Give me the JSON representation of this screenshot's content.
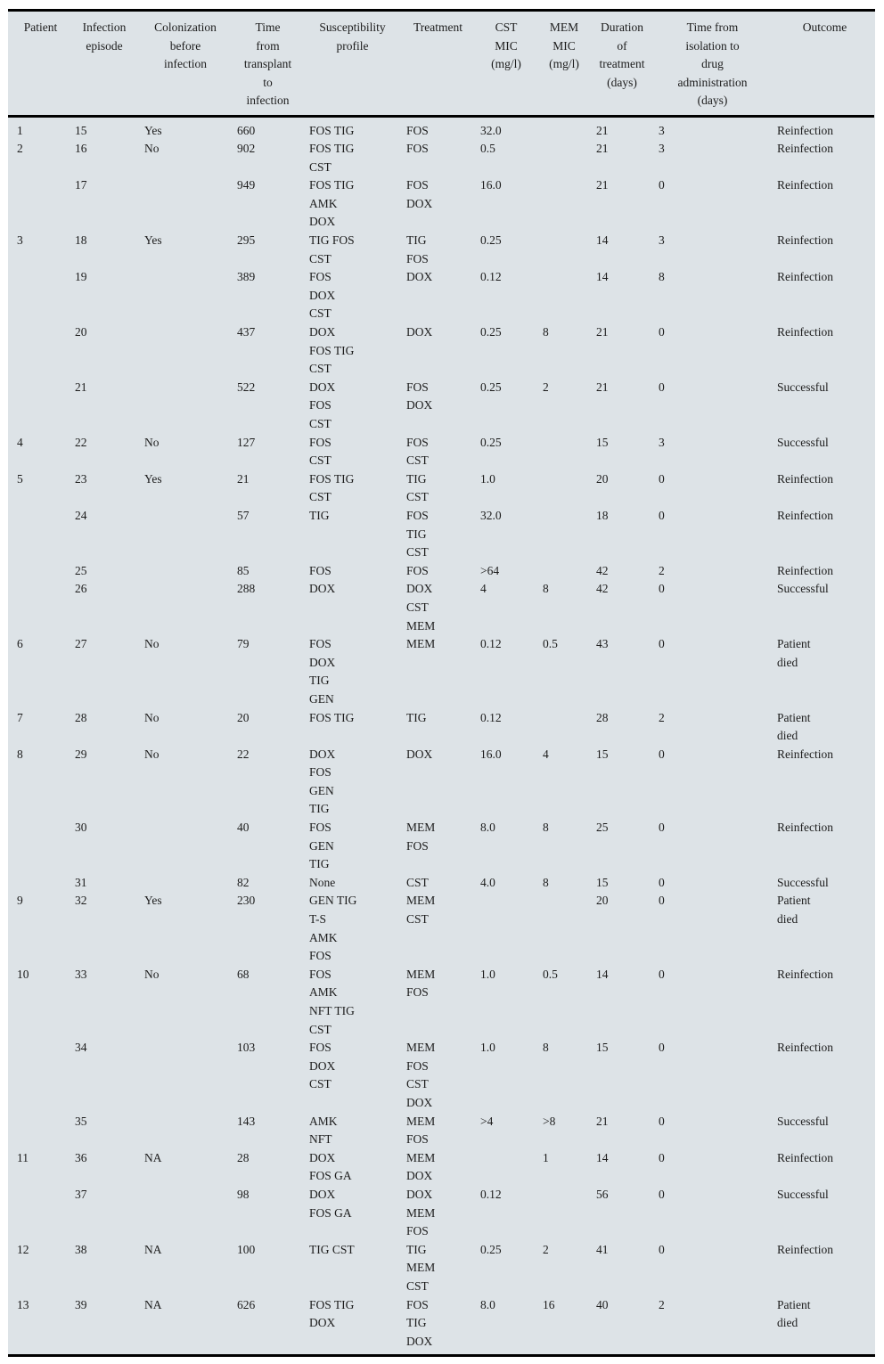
{
  "table": {
    "column_ids": [
      "patient",
      "infection-episode",
      "colonization-before-infection",
      "time-from-transplant-to-infection",
      "susceptibility-profile",
      "treatment",
      "cst-mic",
      "mem-mic",
      "treatment-duration",
      "time-from-isolation-to-drug-administration",
      "outcome"
    ],
    "columns": [
      [
        "Patient"
      ],
      [
        "Infection",
        "episode"
      ],
      [
        "Colonization",
        "before",
        "infection"
      ],
      [
        "Time",
        "from",
        "transplant",
        "to",
        "infection"
      ],
      [
        "Susceptibility",
        "profile"
      ],
      [
        "Treatment"
      ],
      [
        "CST",
        "MIC",
        "(mg/l)"
      ],
      [
        "MEM",
        "MIC",
        "(mg/l)"
      ],
      [
        "Duration",
        "of",
        "treatment",
        "(days)"
      ],
      [
        "Time from",
        "isolation to",
        "drug",
        "administration",
        "(days)"
      ],
      [
        "Outcome"
      ]
    ],
    "rows": [
      [
        "1",
        "15",
        "Yes",
        "660",
        "FOS TIG",
        "FOS",
        "32.0",
        "",
        "21",
        "3",
        "Reinfection"
      ],
      [
        "2",
        "16",
        "No",
        "902",
        [
          "FOS TIG",
          "CST"
        ],
        "FOS",
        "0.5",
        "",
        "21",
        "3",
        "Reinfection"
      ],
      [
        "",
        "17",
        "",
        "949",
        [
          "FOS TIG",
          "AMK",
          "DOX"
        ],
        [
          "FOS",
          "DOX"
        ],
        "16.0",
        "",
        "21",
        "0",
        "Reinfection"
      ],
      [
        "3",
        "18",
        "Yes",
        "295",
        [
          "TIG FOS",
          "CST"
        ],
        [
          "TIG",
          "FOS"
        ],
        "0.25",
        "",
        "14",
        "3",
        "Reinfection"
      ],
      [
        "",
        "19",
        "",
        "389",
        [
          "FOS",
          "DOX",
          "CST"
        ],
        "DOX",
        "0.12",
        "",
        "14",
        "8",
        "Reinfection"
      ],
      [
        "",
        "20",
        "",
        "437",
        [
          "DOX",
          "FOS TIG",
          "CST"
        ],
        "DOX",
        "0.25",
        "8",
        "21",
        "0",
        "Reinfection"
      ],
      [
        "",
        "21",
        "",
        "522",
        [
          "DOX",
          "FOS",
          "CST"
        ],
        [
          "FOS",
          "DOX"
        ],
        "0.25",
        "2",
        "21",
        "0",
        "Successful"
      ],
      [
        "4",
        "22",
        "No",
        "127",
        [
          "FOS",
          "CST"
        ],
        [
          "FOS",
          "CST"
        ],
        "0.25",
        "",
        "15",
        "3",
        "Successful"
      ],
      [
        "5",
        "23",
        "Yes",
        "21",
        [
          "FOS TIG",
          "CST"
        ],
        [
          "TIG",
          "CST"
        ],
        "1.0",
        "",
        "20",
        "0",
        "Reinfection"
      ],
      [
        "",
        "24",
        "",
        "57",
        "TIG",
        [
          "FOS",
          "TIG",
          "CST"
        ],
        "32.0",
        "",
        "18",
        "0",
        "Reinfection"
      ],
      [
        "",
        "25",
        "",
        "85",
        "FOS",
        "FOS",
        ">64",
        "",
        "42",
        "2",
        "Reinfection"
      ],
      [
        "",
        "26",
        "",
        "288",
        "DOX",
        [
          "DOX",
          "CST",
          "MEM"
        ],
        "4",
        "8",
        "42",
        "0",
        "Successful"
      ],
      [
        "6",
        "27",
        "No",
        "79",
        [
          "FOS",
          "DOX",
          "TIG",
          "GEN"
        ],
        "MEM",
        "0.12",
        "0.5",
        "43",
        "0",
        [
          "Patient",
          "died"
        ]
      ],
      [
        "7",
        "28",
        "No",
        "20",
        "FOS TIG",
        "TIG",
        "0.12",
        "",
        "28",
        "2",
        [
          "Patient",
          "died"
        ]
      ],
      [
        "8",
        "29",
        "No",
        "22",
        [
          "DOX",
          "FOS",
          "GEN",
          "TIG"
        ],
        "DOX",
        "16.0",
        "4",
        "15",
        "0",
        "Reinfection"
      ],
      [
        "",
        "30",
        "",
        "40",
        [
          "FOS",
          "GEN",
          "TIG"
        ],
        [
          "MEM",
          "FOS"
        ],
        "8.0",
        "8",
        "25",
        "0",
        "Reinfection"
      ],
      [
        "",
        "31",
        "",
        "82",
        "None",
        "CST",
        "4.0",
        "8",
        "15",
        "0",
        "Successful"
      ],
      [
        "9",
        "32",
        "Yes",
        "230",
        [
          "GEN TIG",
          "T-S",
          "AMK",
          "FOS"
        ],
        [
          "MEM",
          "CST"
        ],
        "",
        "",
        "20",
        "0",
        [
          "Patient",
          "died"
        ]
      ],
      [
        "10",
        "33",
        "No",
        "68",
        [
          "FOS",
          "AMK",
          "NFT TIG",
          "CST"
        ],
        [
          "MEM",
          "FOS"
        ],
        "1.0",
        "0.5",
        "14",
        "0",
        "Reinfection"
      ],
      [
        "",
        "34",
        "",
        "103",
        [
          "FOS",
          "DOX",
          "CST"
        ],
        [
          "MEM",
          "FOS",
          "CST",
          "DOX"
        ],
        "1.0",
        "8",
        "15",
        "0",
        "Reinfection"
      ],
      [
        "",
        "35",
        "",
        "143",
        [
          "AMK",
          "NFT"
        ],
        [
          "MEM",
          "FOS"
        ],
        ">4",
        ">8",
        "21",
        "0",
        "Successful"
      ],
      [
        "11",
        "36",
        "NA",
        "28",
        [
          "DOX",
          "FOS GA"
        ],
        [
          "MEM",
          "DOX"
        ],
        "",
        "1",
        "14",
        "0",
        "Reinfection"
      ],
      [
        "",
        "37",
        "",
        "98",
        [
          "DOX",
          "FOS GA"
        ],
        [
          "DOX",
          "MEM",
          "FOS"
        ],
        "0.12",
        "",
        "56",
        "0",
        "Successful"
      ],
      [
        "12",
        "38",
        "NA",
        "100",
        "TIG CST",
        [
          "TIG",
          "MEM",
          "CST"
        ],
        "0.25",
        "2",
        "41",
        "0",
        "Reinfection"
      ],
      [
        "13",
        "39",
        "NA",
        "626",
        [
          "FOS TIG",
          "DOX"
        ],
        [
          "FOS",
          "TIG",
          "DOX"
        ],
        "8.0",
        "16",
        "40",
        "2",
        [
          "Patient",
          "died"
        ]
      ]
    ],
    "colors": {
      "table_background": "#dde3e7",
      "rule": "#000000",
      "text": "#1c1c1c",
      "page_background": "#ffffff"
    }
  }
}
